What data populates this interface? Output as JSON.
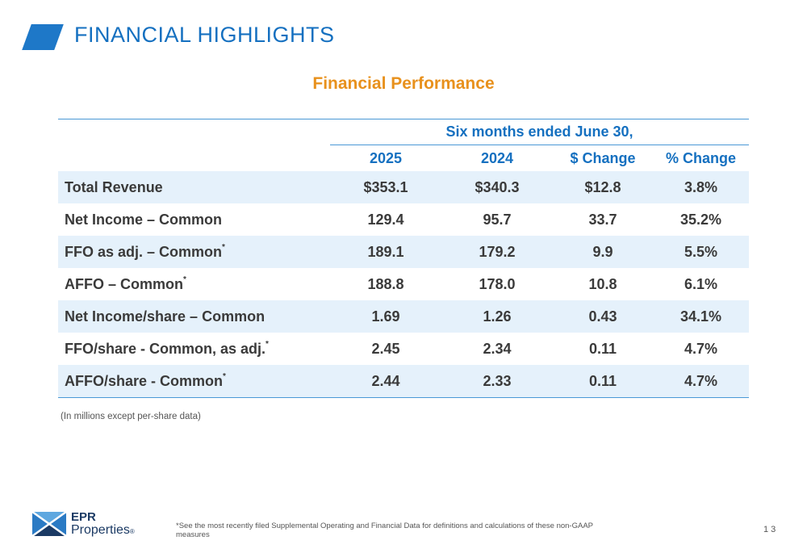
{
  "header": {
    "title": "FINANCIAL HIGHLIGHTS",
    "accent_color": "#1e78c8"
  },
  "section": {
    "title": "Financial Performance",
    "title_color": "#e8911d"
  },
  "table": {
    "period_header": "Six months ended June 30,",
    "columns": [
      "2025",
      "2024",
      "$ Change",
      "% Change"
    ],
    "rows": [
      {
        "label": "Total Revenue",
        "footnote": "",
        "values": [
          "$353.1",
          "$340.3",
          "$12.8",
          "3.8%"
        ]
      },
      {
        "label": "Net Income – Common",
        "footnote": "",
        "values": [
          "129.4",
          "95.7",
          "33.7",
          "35.2%"
        ]
      },
      {
        "label": "FFO as adj. – Common",
        "footnote": "*",
        "values": [
          "189.1",
          "179.2",
          "9.9",
          "5.5%"
        ]
      },
      {
        "label": "AFFO – Common",
        "footnote": "*",
        "values": [
          "188.8",
          "178.0",
          "10.8",
          "6.1%"
        ]
      },
      {
        "label": "Net Income/share – Common",
        "footnote": "",
        "values": [
          "1.69",
          "1.26",
          "0.43",
          "34.1%"
        ]
      },
      {
        "label": "FFO/share - Common, as adj.",
        "footnote": "*",
        "values": [
          "2.45",
          "2.34",
          "0.11",
          "4.7%"
        ]
      },
      {
        "label": "AFFO/share - Common",
        "footnote": "*",
        "values": [
          "2.44",
          "2.33",
          "0.11",
          "4.7%"
        ]
      }
    ],
    "row_shade_color": "#e5f1fb",
    "header_color": "#1570c0"
  },
  "note": "(In millions except per-share data)",
  "footer": {
    "logo_line1": "EPR",
    "logo_line2": "Properties",
    "logo_reg": "®",
    "footnote": "*See the most recently filed Supplemental Operating and Financial Data for definitions and calculations of these non-GAAP measures",
    "page_number": "13"
  }
}
